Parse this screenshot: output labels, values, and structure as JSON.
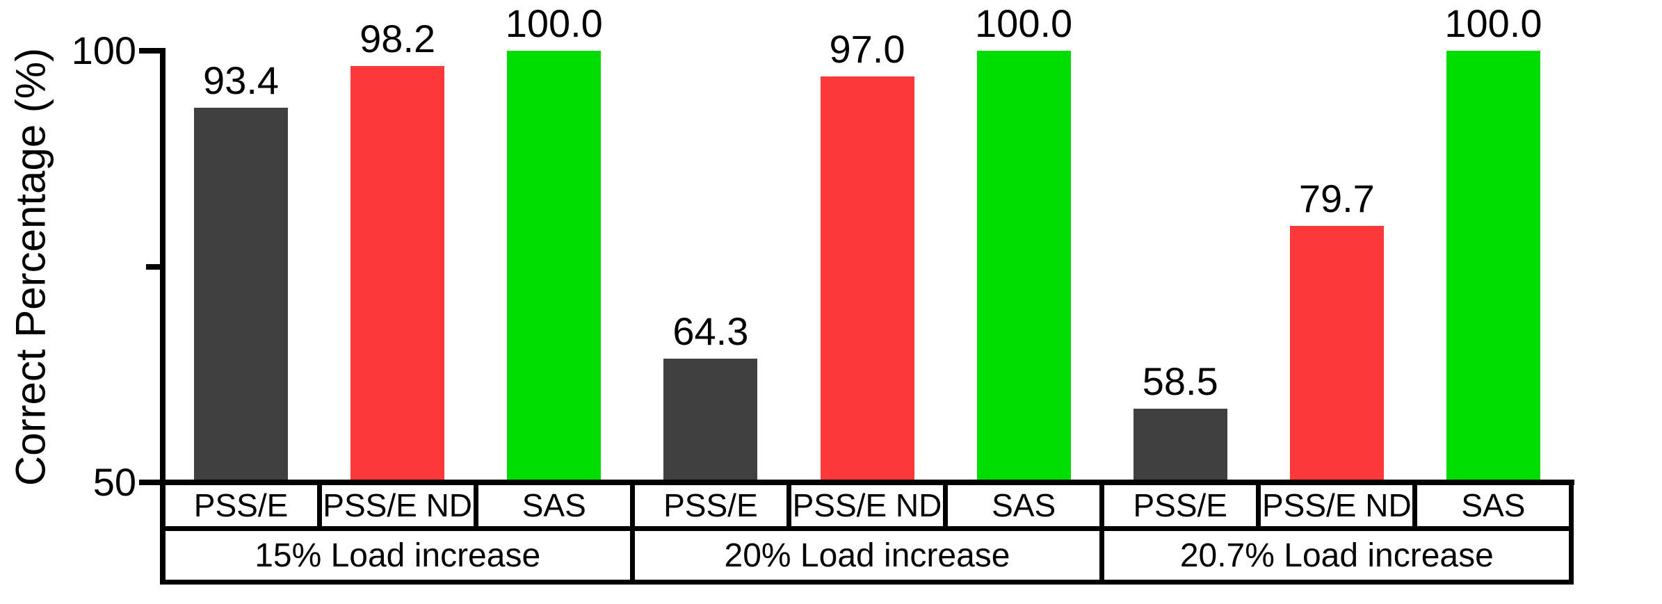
{
  "chart_data": {
    "type": "bar",
    "title": "",
    "ylabel": "Correct Percentage (%)",
    "xlabel": "",
    "ylim": [
      50,
      100
    ],
    "y_major_ticks": [
      50,
      100
    ],
    "y_minor_ticks": [
      75
    ],
    "grid": false,
    "legend_position": "none",
    "series_names": [
      "PSS/E",
      "PSS/E ND",
      "SAS"
    ],
    "series_colors": [
      "#404040",
      "#FD3838",
      "#00DB00"
    ],
    "categories": [
      "15% Load increase",
      "20% Load increase",
      "20.7% Load increase"
    ],
    "groups": [
      {
        "label": "15% Load increase",
        "values": [
          93.4,
          98.2,
          100.0
        ]
      },
      {
        "label": "20% Load increase",
        "values": [
          64.3,
          97.0,
          100.0
        ]
      },
      {
        "label": "20.7% Load increase",
        "values": [
          58.5,
          79.7,
          100.0
        ]
      }
    ],
    "colors": {
      "axis": "#000000",
      "text": "#000000",
      "background": "#ffffff"
    }
  }
}
